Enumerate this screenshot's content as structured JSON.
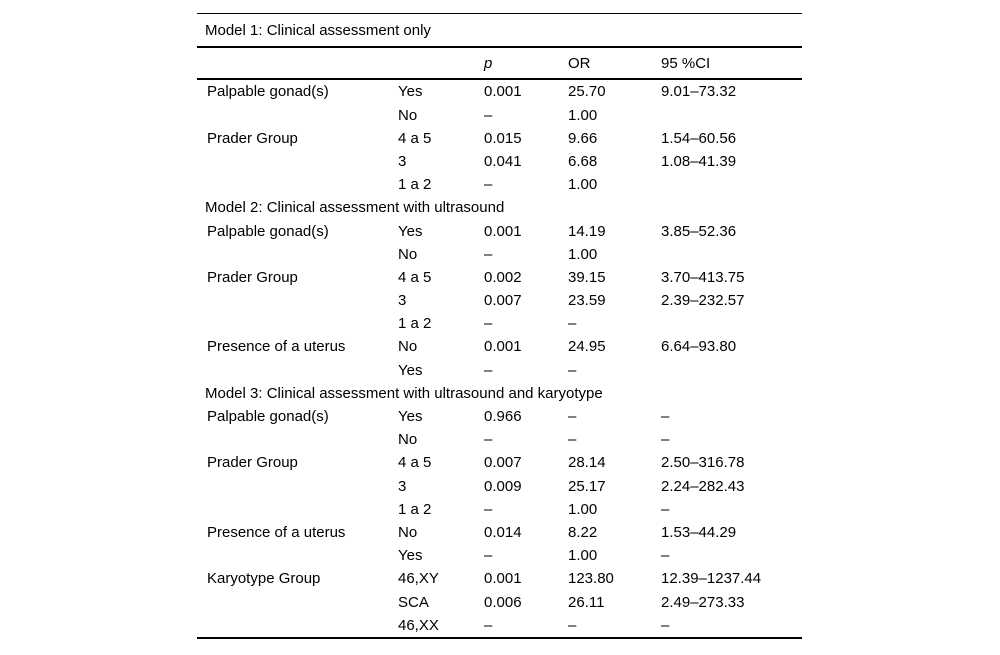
{
  "colors": {
    "background": "#ffffff",
    "text": "#000000",
    "rule": "#000000"
  },
  "table": {
    "columns": [
      "",
      "",
      "p",
      "OR",
      "95 %CI"
    ],
    "sections": [
      {
        "title": "Model 1: Clinical assessment only",
        "rows": [
          {
            "label": "Palpable gonad(s)",
            "level": "Yes",
            "p": "0.001",
            "or": "25.70",
            "ci": "9.01–73.32"
          },
          {
            "label": "",
            "level": "No",
            "p": "–",
            "or": "1.00",
            "ci": ""
          },
          {
            "label": "Prader Group",
            "level": "4 a 5",
            "p": "0.015",
            "or": "9.66",
            "ci": "1.54–60.56"
          },
          {
            "label": "",
            "level": "3",
            "p": "0.041",
            "or": "6.68",
            "ci": "1.08–41.39"
          },
          {
            "label": "",
            "level": "1 a 2",
            "p": "–",
            "or": "1.00",
            "ci": ""
          }
        ]
      },
      {
        "title": "Model 2: Clinical assessment with ultrasound",
        "rows": [
          {
            "label": "Palpable gonad(s)",
            "level": "Yes",
            "p": "0.001",
            "or": "14.19",
            "ci": "3.85–52.36"
          },
          {
            "label": "",
            "level": "No",
            "p": "–",
            "or": "1.00",
            "ci": ""
          },
          {
            "label": "Prader Group",
            "level": "4 a 5",
            "p": "0.002",
            "or": "39.15",
            "ci": "3.70–413.75"
          },
          {
            "label": "",
            "level": "3",
            "p": "0.007",
            "or": "23.59",
            "ci": "2.39–232.57"
          },
          {
            "label": "",
            "level": "1 a 2",
            "p": "–",
            "or": "–",
            "ci": ""
          },
          {
            "label": "Presence of a uterus",
            "level": "No",
            "p": "0.001",
            "or": "24.95",
            "ci": "6.64–93.80"
          },
          {
            "label": "",
            "level": "Yes",
            "p": "–",
            "or": "–",
            "ci": ""
          }
        ]
      },
      {
        "title": "Model 3: Clinical assessment with ultrasound and karyotype",
        "rows": [
          {
            "label": "Palpable gonad(s)",
            "level": "Yes",
            "p": "0.966",
            "or": "–",
            "ci": "–"
          },
          {
            "label": "",
            "level": "No",
            "p": "–",
            "or": "–",
            "ci": "–"
          },
          {
            "label": "Prader Group",
            "level": "4 a 5",
            "p": "0.007",
            "or": "28.14",
            "ci": "2.50–316.78"
          },
          {
            "label": "",
            "level": "3",
            "p": "0.009",
            "or": "25.17",
            "ci": "2.24–282.43"
          },
          {
            "label": "",
            "level": "1 a 2",
            "p": "–",
            "or": "1.00",
            "ci": "–"
          },
          {
            "label": "Presence of a uterus",
            "level": "No",
            "p": "0.014",
            "or": "8.22",
            "ci": "1.53–44.29"
          },
          {
            "label": "",
            "level": "Yes",
            "p": "–",
            "or": "1.00",
            "ci": "–"
          },
          {
            "label": "Karyotype Group",
            "level": "46,XY",
            "p": "0.001",
            "or": "123.80",
            "ci": "12.39–1237.44"
          },
          {
            "label": "",
            "level": "SCA",
            "p": "0.006",
            "or": "26.11",
            "ci": "2.49–273.33"
          },
          {
            "label": "",
            "level": "46,XX",
            "p": "–",
            "or": "–",
            "ci": "–"
          }
        ]
      }
    ]
  }
}
